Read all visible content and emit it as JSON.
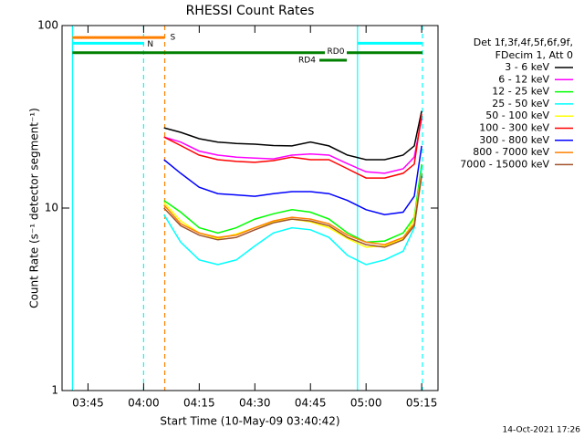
{
  "chart_data": {
    "type": "line",
    "title": "RHESSI Count Rates",
    "x_label": "Start Time (10-May-09 03:40:42)",
    "y_label": "Count Rate (s⁻¹ detector segment⁻¹)",
    "log_y": true,
    "ylim": [
      1,
      100
    ],
    "yticks": [
      1,
      10,
      100
    ],
    "xlim": [
      218,
      319.4
    ],
    "xticks": [
      {
        "value": 225,
        "label": "03:45"
      },
      {
        "value": 240,
        "label": "04:00"
      },
      {
        "value": 255,
        "label": "04:15"
      },
      {
        "value": 270,
        "label": "04:30"
      },
      {
        "value": 285,
        "label": "04:45"
      },
      {
        "value": 300,
        "label": "05:00"
      },
      {
        "value": 315,
        "label": "05:15"
      }
    ],
    "legend_header": [
      "Det 1f,3f,4f,5f,6f,9f,",
      "FDecim 1, Att 0"
    ],
    "footer": "14-Oct-2021 17:26",
    "x": [
      245.5,
      250,
      255,
      260,
      265,
      270,
      275,
      280,
      285,
      290,
      295,
      300,
      305,
      310,
      313,
      315
    ],
    "series": [
      {
        "name": "3 - 6 keV",
        "color": "#000000",
        "values": [
          27.5,
          26,
          24,
          23,
          22.6,
          22.4,
          22,
          21.9,
          23,
          21.9,
          19.5,
          18.4,
          18.4,
          19.5,
          21.9,
          34
        ]
      },
      {
        "name": "6 - 12 keV",
        "color": "#ff00ff",
        "values": [
          24.5,
          23,
          20.5,
          19.5,
          19,
          18.8,
          18.6,
          19.5,
          19.8,
          19.5,
          17.5,
          15.8,
          15.5,
          16.4,
          19,
          31
        ]
      },
      {
        "name": "12 - 25 keV",
        "color": "#00ff00",
        "values": [
          11,
          9.5,
          7.8,
          7.3,
          7.8,
          8.7,
          9.3,
          9.8,
          9.5,
          8.7,
          7.3,
          6.5,
          6.6,
          7.3,
          8.9,
          17.4
        ]
      },
      {
        "name": "25 - 50 keV",
        "color": "#00ffff",
        "values": [
          9.2,
          6.5,
          5.2,
          4.9,
          5.2,
          6.2,
          7.3,
          7.8,
          7.6,
          6.9,
          5.5,
          4.9,
          5.2,
          5.8,
          7.8,
          16.4
        ]
      },
      {
        "name": "50 - 100 keV",
        "color": "#ffff00",
        "values": [
          10.7,
          8.5,
          7.3,
          6.8,
          7.2,
          7.8,
          8.4,
          8.7,
          8.4,
          7.8,
          6.8,
          6.1,
          6.2,
          6.8,
          8.7,
          15.5
        ]
      },
      {
        "name": "100 - 300 keV",
        "color": "#ff0000",
        "values": [
          24.5,
          22,
          19.5,
          18.4,
          18,
          17.8,
          18.2,
          19,
          18.4,
          18.4,
          16.4,
          14.6,
          14.6,
          15.5,
          17.4,
          32.7
        ]
      },
      {
        "name": "300 - 800 keV",
        "color": "#0000ff",
        "values": [
          18.4,
          15.5,
          13,
          12,
          11.8,
          11.6,
          12,
          12.3,
          12.3,
          12,
          11,
          9.8,
          9.2,
          9.5,
          11.6,
          21.9
        ]
      },
      {
        "name": "800 - 7000 keV",
        "color": "#ff8000",
        "values": [
          10.4,
          8.2,
          7.3,
          6.9,
          7.1,
          7.8,
          8.5,
          8.9,
          8.7,
          8.2,
          7.1,
          6.5,
          6.3,
          6.9,
          8.2,
          15.5
        ]
      },
      {
        "name": "7000 - 15000 keV",
        "color": "#a0522d",
        "values": [
          10,
          8,
          7.1,
          6.7,
          6.9,
          7.6,
          8.3,
          8.7,
          8.5,
          8,
          6.9,
          6.3,
          6.1,
          6.7,
          8,
          15
        ]
      }
    ],
    "vlines": [
      {
        "x": 220.8,
        "color": "#00ffff",
        "dashed": false
      },
      {
        "x": 240,
        "color": "#00ffff",
        "dashed": true
      },
      {
        "x": 245.7,
        "color": "#ff8000",
        "dashed": true
      },
      {
        "x": 297.7,
        "color": "#00ffff",
        "dashed": false
      },
      {
        "x": 315.2,
        "color": "#00ffff",
        "dashed": true
      }
    ],
    "bars": [
      {
        "label": "S",
        "color": "#ff8000",
        "value": 86,
        "segments": [
          [
            220.8,
            245.7
          ]
        ]
      },
      {
        "label": "N",
        "color": "#00ffff",
        "value": 80,
        "segments": [
          [
            220.8,
            240
          ],
          [
            297.7,
            315.2
          ]
        ]
      },
      {
        "label": "RD0",
        "color": "#008000",
        "value": 71,
        "segments": [
          [
            220.8,
            315.2
          ]
        ]
      },
      {
        "label": "RD4",
        "color": "#008000",
        "value": 64.6,
        "segments": [
          [
            287.4,
            294.8
          ]
        ]
      }
    ]
  }
}
